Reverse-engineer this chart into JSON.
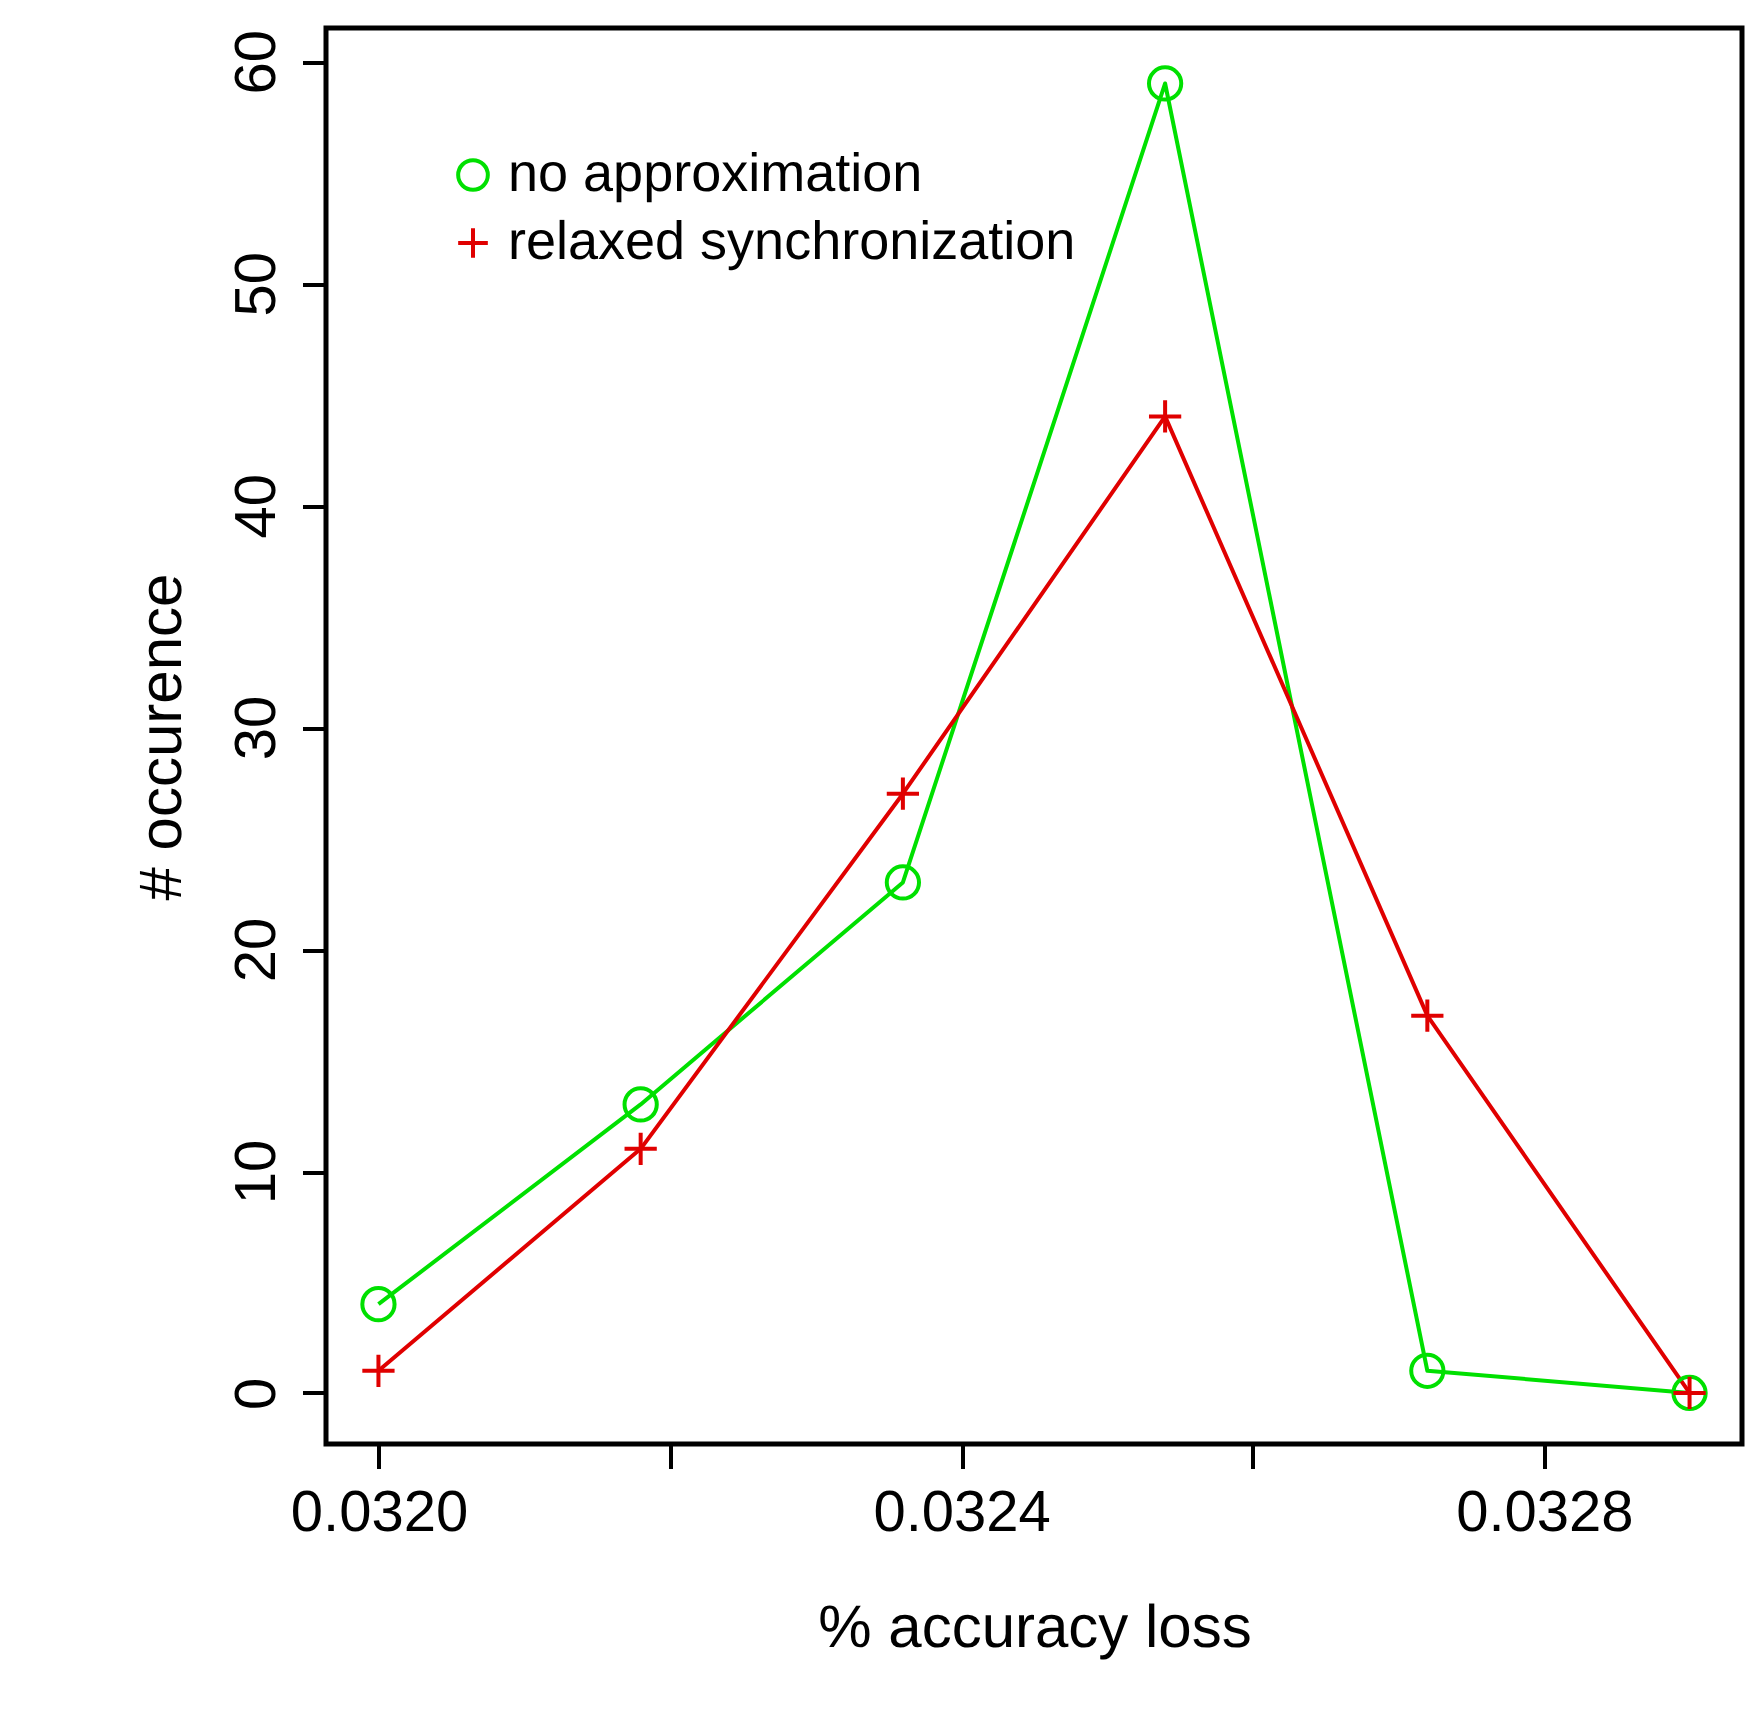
{
  "chart_data": {
    "type": "line",
    "xlabel": "% accuracy loss",
    "ylabel": "# occurence",
    "x": [
      0.032,
      0.03218,
      0.03236,
      0.03254,
      0.03272,
      0.0329
    ],
    "series": [
      {
        "name": "no approximation",
        "color": "#00e000",
        "marker": "circle",
        "values": [
          4,
          13,
          23,
          59,
          1,
          0
        ]
      },
      {
        "name": "relaxed synchronization",
        "color": "#e00000",
        "marker": "cross",
        "values": [
          1,
          11,
          27,
          44,
          17,
          0
        ]
      }
    ],
    "xlim": [
      0.031964,
      0.032936
    ],
    "xticks": [
      {
        "value": 0.032,
        "label": "0.0320"
      },
      {
        "value": 0.0322,
        "label": null
      },
      {
        "value": 0.0324,
        "label": "0.0324"
      },
      {
        "value": 0.0326,
        "label": null
      },
      {
        "value": 0.0328,
        "label": "0.0328"
      }
    ],
    "ylim": [
      -2.3,
      61.5
    ],
    "yticks": [
      0,
      10,
      20,
      30,
      40,
      50,
      60
    ],
    "legend": "top left",
    "grid": false
  }
}
